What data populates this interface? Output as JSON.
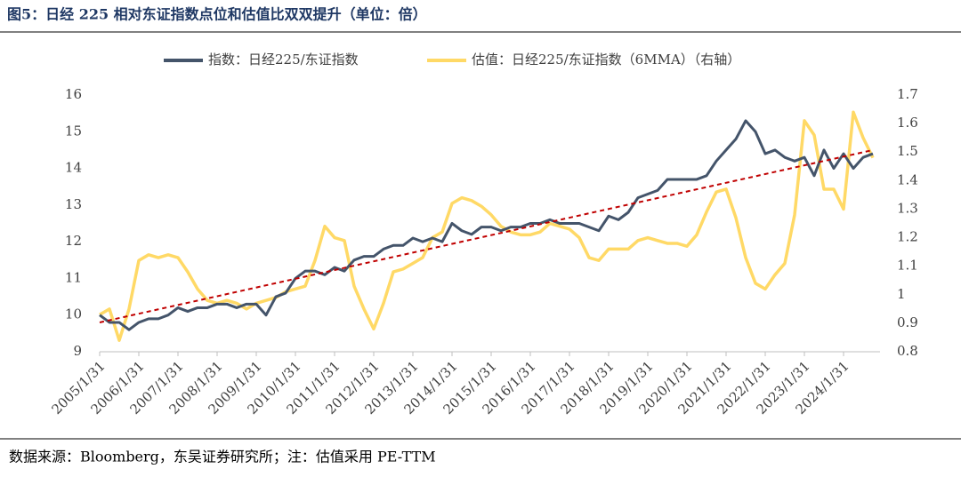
{
  "chart_data": {
    "type": "line",
    "title": "图5：日经 225 相对东证指数点位和估值比双双提升（单位：倍）",
    "source": "数据来源：Bloomberg，东吴证券研究所；注：估值采用 PE-TTM",
    "categories": [
      "2005/1/31",
      null,
      null,
      null,
      "2006/1/31",
      null,
      null,
      null,
      "2007/1/31",
      null,
      null,
      null,
      "2008/1/31",
      null,
      null,
      null,
      "2009/1/31",
      null,
      null,
      null,
      "2010/1/31",
      null,
      null,
      null,
      "2011/1/31",
      null,
      null,
      null,
      "2012/1/31",
      null,
      null,
      null,
      "2013/1/31",
      null,
      null,
      null,
      "2014/1/31",
      null,
      null,
      null,
      "2015/1/31",
      null,
      null,
      null,
      "2016/1/31",
      null,
      null,
      null,
      "2017/1/31",
      null,
      null,
      null,
      "2018/1/31",
      null,
      null,
      null,
      "2019/1/31",
      null,
      null,
      null,
      "2020/1/31",
      null,
      null,
      null,
      "2021/1/31",
      null,
      null,
      null,
      "2022/1/31",
      null,
      null,
      null,
      "2023/1/31",
      null,
      null,
      null,
      "2024/1/31",
      null,
      null,
      null
    ],
    "series": [
      {
        "name": "指数：日经225/东证指数",
        "color": "#44546a",
        "values": [
          10.0,
          9.8,
          9.8,
          9.6,
          9.8,
          9.9,
          9.9,
          10.0,
          10.2,
          10.1,
          10.2,
          10.2,
          10.3,
          10.3,
          10.2,
          10.3,
          10.3,
          10.0,
          10.5,
          10.6,
          11.0,
          11.2,
          11.2,
          11.1,
          11.3,
          11.2,
          11.5,
          11.6,
          11.6,
          11.8,
          11.9,
          11.9,
          12.1,
          12.0,
          12.1,
          12.0,
          12.5,
          12.3,
          12.2,
          12.4,
          12.4,
          12.3,
          12.4,
          12.4,
          12.5,
          12.5,
          12.6,
          12.5,
          12.5,
          12.5,
          12.4,
          12.3,
          12.7,
          12.6,
          12.8,
          13.2,
          13.3,
          13.4,
          13.7,
          13.7,
          13.7,
          13.7,
          13.8,
          14.2,
          14.5,
          14.8,
          15.3,
          15.0,
          14.4,
          14.5,
          14.3,
          14.2,
          14.3,
          13.8,
          14.5,
          14.0,
          14.4,
          14.0,
          14.3,
          14.4
        ]
      },
      {
        "name": "估值：日经225/东证指数（6MMA）（右轴）",
        "color": "#ffd966",
        "axis": "y2",
        "values": [
          0.93,
          0.95,
          0.84,
          0.95,
          1.12,
          1.14,
          1.13,
          1.14,
          1.13,
          1.08,
          1.02,
          0.98,
          0.97,
          0.98,
          0.97,
          0.95,
          0.97,
          0.98,
          0.99,
          1.01,
          1.02,
          1.03,
          1.12,
          1.24,
          1.2,
          1.19,
          1.03,
          0.95,
          0.88,
          0.97,
          1.08,
          1.09,
          1.11,
          1.13,
          1.2,
          1.22,
          1.32,
          1.34,
          1.33,
          1.31,
          1.28,
          1.24,
          1.22,
          1.21,
          1.21,
          1.22,
          1.25,
          1.24,
          1.23,
          1.2,
          1.13,
          1.12,
          1.16,
          1.16,
          1.16,
          1.19,
          1.2,
          1.19,
          1.18,
          1.18,
          1.17,
          1.21,
          1.29,
          1.36,
          1.37,
          1.27,
          1.13,
          1.04,
          1.02,
          1.07,
          1.11,
          1.28,
          1.61,
          1.56,
          1.37,
          1.37,
          1.3,
          1.64,
          1.55,
          1.48
        ]
      }
    ],
    "trend": {
      "color": "#c00000",
      "values": [
        9.8,
        14.5
      ]
    },
    "ylim": [
      9,
      16
    ],
    "yticks": [
      9,
      10,
      11,
      12,
      13,
      14,
      15,
      16
    ],
    "y2lim": [
      0.8,
      1.7
    ],
    "y2ticks": [
      0.8,
      0.9,
      1,
      1.1,
      1.2,
      1.3,
      1.4,
      1.5,
      1.6,
      1.7
    ]
  }
}
